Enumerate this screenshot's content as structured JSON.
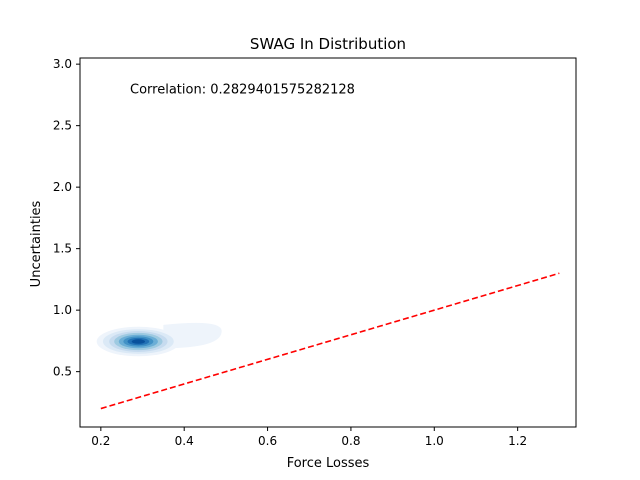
{
  "chart_data": {
    "type": "kde",
    "title": "SWAG In Distribution",
    "xlabel": "Force Losses",
    "ylabel": "Uncertainties",
    "xlim": [
      0.15,
      1.34
    ],
    "ylim": [
      0.05,
      3.05
    ],
    "xticks": [
      0.2,
      0.4,
      0.6,
      0.8,
      1.0,
      1.2
    ],
    "xtick_labels": [
      "0.2",
      "0.4",
      "0.6",
      "0.8",
      "1.0",
      "1.2"
    ],
    "yticks": [
      0.5,
      1.0,
      1.5,
      2.0,
      2.5,
      3.0
    ],
    "ytick_labels": [
      "0.5",
      "1.0",
      "1.5",
      "2.0",
      "2.5",
      "3.0"
    ],
    "annotation": {
      "text": "Correlation: 0.2829401575282128",
      "x": 0.27,
      "y": 2.76
    },
    "reference_line": {
      "style": "dashed",
      "color": "#ff0000",
      "x": [
        0.2,
        1.3
      ],
      "y": [
        0.2,
        1.3
      ]
    },
    "density": {
      "center": [
        0.29,
        0.745
      ],
      "colormap": "Blues",
      "levels": [
        {
          "rx": 0.1,
          "ry": 0.12,
          "color": "#eef4fb"
        },
        {
          "rx": 0.085,
          "ry": 0.1,
          "color": "#dbe9f6"
        },
        {
          "rx": 0.07,
          "ry": 0.085,
          "color": "#c6dbef"
        },
        {
          "rx": 0.058,
          "ry": 0.07,
          "color": "#9ecae1"
        },
        {
          "rx": 0.047,
          "ry": 0.055,
          "color": "#6baed6"
        },
        {
          "rx": 0.036,
          "ry": 0.042,
          "color": "#4292c6"
        },
        {
          "rx": 0.026,
          "ry": 0.03,
          "color": "#2171b5"
        },
        {
          "rx": 0.016,
          "ry": 0.018,
          "color": "#08519c"
        }
      ],
      "tail": {
        "x": [
          0.35,
          0.49
        ],
        "y": [
          0.78,
          0.83
        ],
        "color": "#eef4fb"
      }
    }
  }
}
